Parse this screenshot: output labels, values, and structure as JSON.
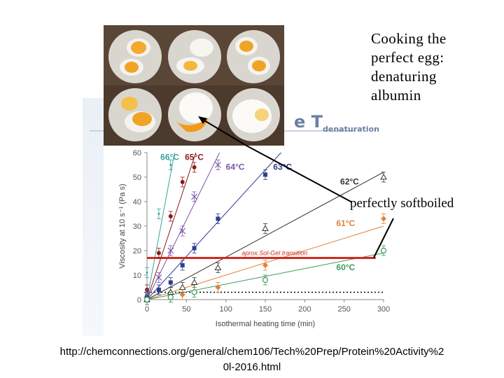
{
  "title": "Cooking the\nperfect egg:\ndenaturing\nalbumin",
  "background_heading": "e T",
  "background_heading_sub": "denaturation",
  "callout": "perfectly softboiled",
  "source": "http://chemconnections.org/general/chem106/Tech%20Prep/Protein%20Activity%2\n0l-2016.html",
  "chart_data": {
    "type": "scatter",
    "xlabel": "Isothermal heating time (min)",
    "ylabel": "Viscosity at 10 s⁻¹ (Pa s)",
    "xlim": [
      0,
      300
    ],
    "ylim": [
      0,
      60
    ],
    "xticks": [
      "0",
      "50",
      "100",
      "150",
      "200",
      "250",
      "300"
    ],
    "yticks": [
      "0",
      "10",
      "20",
      "30",
      "40",
      "50",
      "60"
    ],
    "series": [
      {
        "name": "66°C",
        "color": "#3aa39a",
        "marker": "line-only",
        "points": [
          [
            0,
            11
          ],
          [
            15,
            35
          ],
          [
            30,
            55
          ]
        ],
        "fit": [
          [
            0,
            0
          ],
          [
            35,
            60
          ]
        ],
        "label_pos": [
          17,
          57
        ]
      },
      {
        "name": "65°C",
        "color": "#8b1a1a",
        "marker": "circle",
        "points": [
          [
            0,
            4
          ],
          [
            15,
            19
          ],
          [
            30,
            34
          ],
          [
            45,
            48
          ],
          [
            60,
            54
          ]
        ],
        "fit": [
          [
            0,
            0
          ],
          [
            62,
            60
          ]
        ],
        "label_pos": [
          48,
          57
        ]
      },
      {
        "name": "64°C",
        "color": "#7a55a8",
        "marker": "x",
        "points": [
          [
            0,
            2
          ],
          [
            15,
            9
          ],
          [
            30,
            20
          ],
          [
            45,
            28
          ],
          [
            60,
            42
          ],
          [
            90,
            55
          ]
        ],
        "fit": [
          [
            0,
            0
          ],
          [
            92,
            60
          ]
        ],
        "label_pos": [
          100,
          53
        ]
      },
      {
        "name": "63°C",
        "color": "#2c3e8c",
        "marker": "square",
        "points": [
          [
            0,
            1
          ],
          [
            15,
            4
          ],
          [
            30,
            7
          ],
          [
            45,
            14
          ],
          [
            60,
            21
          ],
          [
            90,
            33
          ],
          [
            150,
            51
          ]
        ],
        "fit": [
          [
            0,
            0
          ],
          [
            170,
            60
          ]
        ],
        "label_pos": [
          160,
          53
        ]
      },
      {
        "name": "62°C",
        "color": "#333333",
        "marker": "triangle",
        "points": [
          [
            0,
            0
          ],
          [
            30,
            3
          ],
          [
            45,
            5
          ],
          [
            60,
            7
          ],
          [
            90,
            13
          ],
          [
            150,
            29
          ],
          [
            300,
            50
          ]
        ],
        "fit": [
          [
            0,
            0
          ],
          [
            300,
            52
          ]
        ],
        "label_pos": [
          245,
          47
        ]
      },
      {
        "name": "61°C",
        "color": "#e0823a",
        "marker": "diamond",
        "points": [
          [
            0,
            0
          ],
          [
            30,
            1
          ],
          [
            45,
            2
          ],
          [
            90,
            5
          ],
          [
            150,
            14
          ],
          [
            300,
            33
          ]
        ],
        "fit": [
          [
            0,
            0
          ],
          [
            300,
            30
          ]
        ],
        "label_pos": [
          240,
          30
        ]
      },
      {
        "name": "60°C",
        "color": "#3f9a5a",
        "marker": "circle-open",
        "points": [
          [
            0,
            0
          ],
          [
            30,
            1
          ],
          [
            60,
            3
          ],
          [
            150,
            8
          ],
          [
            300,
            20
          ]
        ],
        "fit": [
          [
            0,
            0
          ],
          [
            300,
            19
          ]
        ],
        "label_pos": [
          240,
          12
        ]
      }
    ],
    "threshold": {
      "label": "aprox.Sol-Gel transition",
      "y": 17,
      "x0": 0,
      "x1": 290,
      "color": "#d32a1e"
    },
    "baseline": {
      "y": 3,
      "style": "dotted"
    }
  }
}
